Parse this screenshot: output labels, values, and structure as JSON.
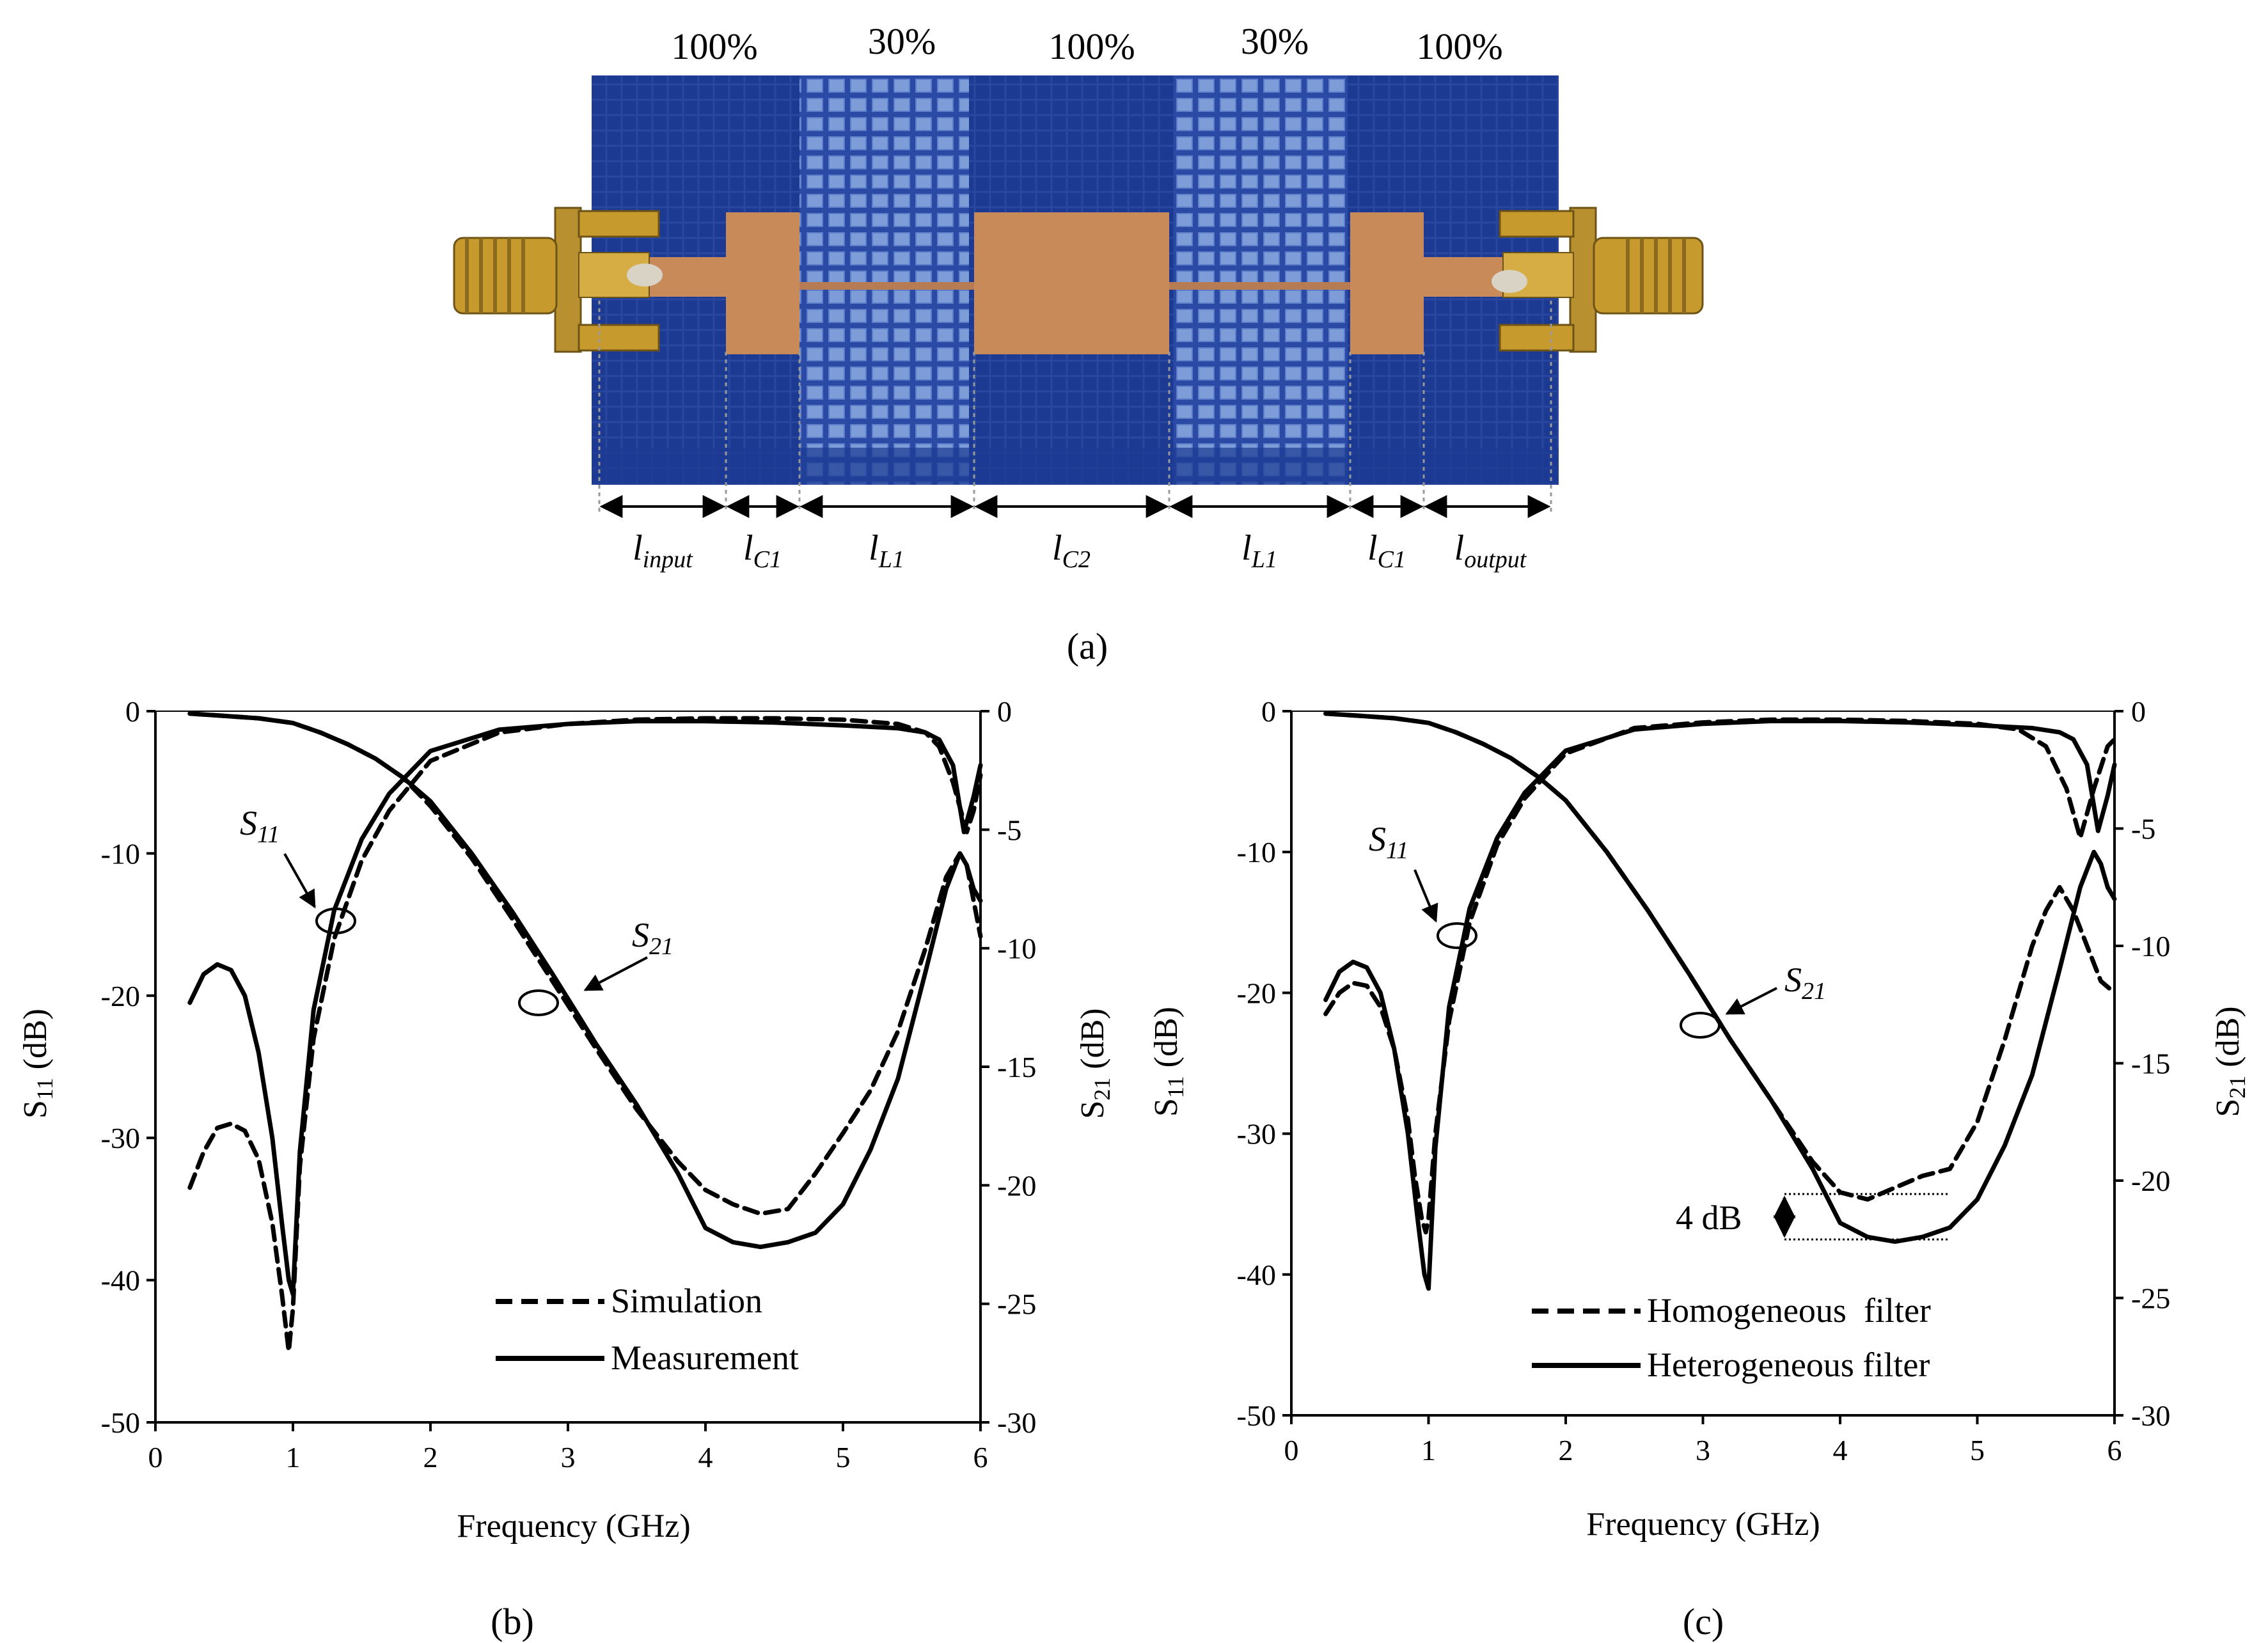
{
  "figure": {
    "panel_a": {
      "caption": "(a)",
      "density_labels": [
        "100%",
        "30%",
        "100%",
        "30%",
        "100%"
      ],
      "segments": [
        {
          "base": "l",
          "sub": "input"
        },
        {
          "base": "l",
          "sub": "C1"
        },
        {
          "base": "l",
          "sub": "L1"
        },
        {
          "base": "l",
          "sub": "C2"
        },
        {
          "base": "l",
          "sub": "L1"
        },
        {
          "base": "l",
          "sub": "C1"
        },
        {
          "base": "l",
          "sub": "output"
        }
      ],
      "colors": {
        "substrate": "#1f3a8f",
        "copper": "#c98a5a",
        "connector": "#c79a2e"
      }
    },
    "panel_b": {
      "caption": "(b)"
    },
    "panel_c": {
      "caption": "(c)",
      "annotation_4db": "4 dB"
    }
  },
  "chart_data": [
    {
      "id": "b",
      "type": "line",
      "xlabel": "Frequency (GHz)",
      "ylabel_left": {
        "base": "S",
        "sub": "11",
        "unit": " (dB)"
      },
      "ylabel_right": {
        "base": "S",
        "sub": "21",
        "unit": " (dB)"
      },
      "xlim": [
        0,
        6
      ],
      "ylim_left": [
        -50,
        0
      ],
      "ylim_right": [
        -30,
        0
      ],
      "xticks": [
        "0",
        "1",
        "2",
        "3",
        "4",
        "5",
        "6"
      ],
      "yticks_left": [
        "0",
        "-10",
        "-20",
        "-30",
        "-40",
        "-50"
      ],
      "yticks_right": [
        "0",
        "-5",
        "-10",
        "-15",
        "-20",
        "-25",
        "-30"
      ],
      "legend": [
        {
          "label": "Simulation",
          "style": "dashed"
        },
        {
          "label": "Measurement",
          "style": "solid"
        }
      ],
      "callouts": [
        {
          "base": "S",
          "sub": "11",
          "target_x": 1.33,
          "target_y_left": -15.0
        },
        {
          "base": "S",
          "sub": "21",
          "target_x": 2.8,
          "target_y_left": -20.3
        }
      ],
      "series": [
        {
          "name": "S11 Simulation",
          "style": "dashed",
          "axis": "left",
          "x": [
            0.25,
            0.35,
            0.45,
            0.55,
            0.65,
            0.75,
            0.85,
            0.92,
            0.97,
            1.0,
            1.05,
            1.15,
            1.3,
            1.5,
            1.7,
            2.0,
            2.5,
            3.0,
            3.5,
            4.0,
            4.5,
            5.0,
            5.4,
            5.6,
            5.7,
            5.8,
            5.9,
            5.95,
            6.0
          ],
          "y": [
            -33.5,
            -31,
            -29.3,
            -29,
            -29.5,
            -31.5,
            -36,
            -41,
            -45,
            -42,
            -32,
            -23,
            -16,
            -10.5,
            -7,
            -3.5,
            -1.5,
            -0.9,
            -0.6,
            -0.5,
            -0.5,
            -0.6,
            -0.9,
            -1.5,
            -2.5,
            -5,
            -8.5,
            -7,
            -4.5
          ]
        },
        {
          "name": "S11 Measurement",
          "style": "solid",
          "axis": "left",
          "x": [
            0.25,
            0.35,
            0.45,
            0.55,
            0.65,
            0.75,
            0.85,
            0.92,
            0.97,
            1.0,
            1.05,
            1.15,
            1.3,
            1.5,
            1.7,
            2.0,
            2.5,
            3.0,
            3.5,
            4.0,
            4.5,
            5.0,
            5.4,
            5.6,
            5.7,
            5.8,
            5.88,
            5.95,
            6.0
          ],
          "y": [
            -20.5,
            -18.5,
            -17.8,
            -18.2,
            -20,
            -24,
            -30,
            -36,
            -40,
            -41,
            -31,
            -21,
            -14,
            -9,
            -5.8,
            -2.8,
            -1.3,
            -0.9,
            -0.7,
            -0.7,
            -0.8,
            -1.0,
            -1.2,
            -1.5,
            -2.0,
            -3.8,
            -8.5,
            -6,
            -3.8
          ]
        },
        {
          "name": "S21 Simulation",
          "style": "dashed",
          "axis": "right",
          "x": [
            0.25,
            0.5,
            0.75,
            1.0,
            1.2,
            1.4,
            1.6,
            1.8,
            2.0,
            2.3,
            2.6,
            2.9,
            3.2,
            3.5,
            3.8,
            4.0,
            4.2,
            4.4,
            4.6,
            4.8,
            5.0,
            5.2,
            5.4,
            5.6,
            5.75,
            5.85,
            5.9,
            5.95,
            6.0
          ],
          "y": [
            -0.1,
            -0.2,
            -0.3,
            -0.5,
            -0.9,
            -1.4,
            -2.0,
            -2.8,
            -4.0,
            -6.2,
            -8.8,
            -11.5,
            -14.2,
            -16.8,
            -19.0,
            -20.2,
            -20.8,
            -21.2,
            -21.0,
            -19.5,
            -17.8,
            -16.0,
            -13.5,
            -10.0,
            -7.0,
            -6.0,
            -6.5,
            -8.0,
            -9.5
          ]
        },
        {
          "name": "S21 Measurement",
          "style": "solid",
          "axis": "right",
          "x": [
            0.25,
            0.5,
            0.75,
            1.0,
            1.2,
            1.4,
            1.6,
            1.8,
            2.0,
            2.3,
            2.6,
            2.9,
            3.2,
            3.5,
            3.8,
            4.0,
            4.2,
            4.4,
            4.6,
            4.8,
            5.0,
            5.2,
            5.4,
            5.6,
            5.75,
            5.85,
            5.9,
            5.95,
            6.0
          ],
          "y": [
            -0.1,
            -0.2,
            -0.3,
            -0.5,
            -0.9,
            -1.4,
            -2.0,
            -2.8,
            -3.8,
            -6.0,
            -8.5,
            -11.2,
            -14.0,
            -16.6,
            -19.5,
            -21.8,
            -22.4,
            -22.6,
            -22.4,
            -22.0,
            -20.8,
            -18.5,
            -15.5,
            -11.0,
            -7.5,
            -6.0,
            -6.5,
            -7.5,
            -8.0
          ]
        }
      ]
    },
    {
      "id": "c",
      "type": "line",
      "xlabel": "Frequency (GHz)",
      "ylabel_left": {
        "base": "S",
        "sub": "11",
        "unit": " (dB)"
      },
      "ylabel_right": {
        "base": "S",
        "sub": "21",
        "unit": " (dB)"
      },
      "xlim": [
        0,
        6
      ],
      "ylim_left": [
        -50,
        0
      ],
      "ylim_right": [
        -30,
        0
      ],
      "xticks": [
        "0",
        "1",
        "2",
        "3",
        "4",
        "5",
        "6"
      ],
      "yticks_left": [
        "0",
        "-10",
        "-20",
        "-30",
        "-40",
        "-50"
      ],
      "yticks_right": [
        "0",
        "-5",
        "-10",
        "-15",
        "-20",
        "-25",
        "-30"
      ],
      "legend": [
        {
          "label": "Homogeneous  filter",
          "style": "dashed"
        },
        {
          "label": "Heterogeneous filter",
          "style": "solid"
        }
      ],
      "callouts": [
        {
          "base": "S",
          "sub": "11",
          "target_x": 1.25,
          "target_y_left": -16.3
        },
        {
          "base": "S",
          "sub": "21",
          "target_x": 3.0,
          "target_y_left": -22.5
        }
      ],
      "series": [
        {
          "name": "S11 Homogeneous",
          "style": "dashed",
          "axis": "left",
          "x": [
            0.25,
            0.35,
            0.45,
            0.55,
            0.65,
            0.75,
            0.85,
            0.9,
            0.95,
            0.98,
            1.0,
            1.05,
            1.15,
            1.3,
            1.5,
            1.7,
            2.0,
            2.5,
            3.0,
            3.5,
            4.0,
            4.5,
            5.0,
            5.3,
            5.5,
            5.65,
            5.75,
            5.85,
            5.95,
            6.0
          ],
          "y": [
            -21.5,
            -20,
            -19.3,
            -19.5,
            -21,
            -24,
            -29,
            -33,
            -36,
            -37,
            -36,
            -30,
            -22,
            -15,
            -9.5,
            -6.2,
            -3,
            -1.2,
            -0.8,
            -0.6,
            -0.6,
            -0.7,
            -0.9,
            -1.3,
            -2.5,
            -5.5,
            -9,
            -5.5,
            -2.5,
            -2.0
          ]
        },
        {
          "name": "S11 Heterogeneous",
          "style": "solid",
          "axis": "left",
          "x": [
            0.25,
            0.35,
            0.45,
            0.55,
            0.65,
            0.75,
            0.85,
            0.92,
            0.97,
            1.0,
            1.05,
            1.15,
            1.3,
            1.5,
            1.7,
            2.0,
            2.5,
            3.0,
            3.5,
            4.0,
            4.5,
            5.0,
            5.4,
            5.6,
            5.7,
            5.8,
            5.88,
            5.95,
            6.0
          ],
          "y": [
            -20.5,
            -18.5,
            -17.8,
            -18.2,
            -20,
            -24,
            -30,
            -36,
            -40,
            -41,
            -31,
            -21,
            -14,
            -9,
            -5.8,
            -2.8,
            -1.3,
            -0.9,
            -0.7,
            -0.7,
            -0.8,
            -1.0,
            -1.2,
            -1.5,
            -2.0,
            -3.8,
            -8.5,
            -6,
            -3.8
          ]
        },
        {
          "name": "S21 Homogeneous",
          "style": "dashed",
          "axis": "right",
          "x": [
            0.25,
            0.5,
            0.75,
            1.0,
            1.2,
            1.4,
            1.6,
            1.8,
            2.0,
            2.3,
            2.6,
            2.9,
            3.2,
            3.5,
            3.8,
            4.0,
            4.2,
            4.4,
            4.6,
            4.8,
            5.0,
            5.2,
            5.4,
            5.5,
            5.6,
            5.7,
            5.8,
            5.9,
            6.0
          ],
          "y": [
            -0.1,
            -0.2,
            -0.3,
            -0.5,
            -0.9,
            -1.4,
            -2.0,
            -2.8,
            -3.8,
            -6.0,
            -8.5,
            -11.2,
            -14.0,
            -16.6,
            -19.2,
            -20.5,
            -20.8,
            -20.3,
            -19.8,
            -19.5,
            -17.5,
            -14.0,
            -10.0,
            -8.5,
            -7.5,
            -8.5,
            -10.0,
            -11.5,
            -12.0
          ]
        },
        {
          "name": "S21 Heterogeneous",
          "style": "solid",
          "axis": "right",
          "x": [
            0.25,
            0.5,
            0.75,
            1.0,
            1.2,
            1.4,
            1.6,
            1.8,
            2.0,
            2.3,
            2.6,
            2.9,
            3.2,
            3.5,
            3.8,
            4.0,
            4.2,
            4.4,
            4.6,
            4.8,
            5.0,
            5.2,
            5.4,
            5.6,
            5.75,
            5.85,
            5.9,
            5.95,
            6.0
          ],
          "y": [
            -0.1,
            -0.2,
            -0.3,
            -0.5,
            -0.9,
            -1.4,
            -2.0,
            -2.8,
            -3.8,
            -6.0,
            -8.5,
            -11.2,
            -14.0,
            -16.6,
            -19.5,
            -21.8,
            -22.4,
            -22.6,
            -22.4,
            -22.0,
            -20.8,
            -18.5,
            -15.5,
            -11.0,
            -7.5,
            -6.0,
            -6.5,
            -7.5,
            -8.0
          ]
        }
      ]
    }
  ]
}
